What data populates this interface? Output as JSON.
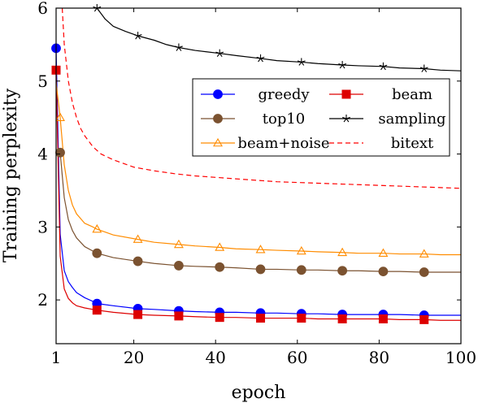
{
  "chart_data": {
    "type": "line",
    "xlabel": "epoch",
    "ylabel": "Training perplexity",
    "xlim": [
      1,
      100
    ],
    "ylim": [
      1.4,
      6
    ],
    "xticks": [
      1,
      20,
      40,
      60,
      80,
      100
    ],
    "yticks": [
      2,
      3,
      4,
      5,
      6
    ],
    "grid": false,
    "legend_position": "top-right",
    "series": [
      {
        "name": "greedy",
        "color": "#0000ff",
        "marker": "circle",
        "dashed": false,
        "x": [
          1,
          2,
          3,
          4,
          5,
          6,
          8,
          10,
          11,
          15,
          21,
          25,
          31,
          35,
          41,
          45,
          51,
          55,
          61,
          65,
          71,
          75,
          81,
          85,
          91,
          95,
          100
        ],
        "y": [
          5.45,
          2.9,
          2.4,
          2.25,
          2.17,
          2.1,
          2.03,
          1.98,
          1.95,
          1.92,
          1.88,
          1.87,
          1.85,
          1.84,
          1.83,
          1.83,
          1.82,
          1.82,
          1.81,
          1.81,
          1.8,
          1.8,
          1.8,
          1.8,
          1.79,
          1.79,
          1.79
        ],
        "marker_x": [
          1,
          11,
          21,
          31,
          41,
          51,
          61,
          71,
          81,
          91
        ]
      },
      {
        "name": "beam",
        "color": "#dd0000",
        "marker": "square",
        "dashed": false,
        "x": [
          1,
          2,
          3,
          4,
          5,
          6,
          8,
          10,
          11,
          15,
          21,
          25,
          31,
          35,
          41,
          45,
          51,
          55,
          61,
          65,
          71,
          75,
          81,
          85,
          91,
          95,
          100
        ],
        "y": [
          5.15,
          2.6,
          2.15,
          2.02,
          1.96,
          1.92,
          1.89,
          1.87,
          1.86,
          1.83,
          1.8,
          1.79,
          1.78,
          1.77,
          1.76,
          1.76,
          1.75,
          1.75,
          1.75,
          1.74,
          1.74,
          1.74,
          1.74,
          1.73,
          1.73,
          1.72,
          1.72
        ],
        "marker_x": [
          1,
          11,
          21,
          31,
          41,
          51,
          61,
          71,
          81,
          91
        ]
      },
      {
        "name": "top10",
        "color": "#7b5230",
        "marker": "circle",
        "dashed": false,
        "x": [
          2,
          3,
          4,
          5,
          6,
          8,
          10,
          11,
          15,
          21,
          25,
          31,
          35,
          41,
          45,
          51,
          55,
          61,
          65,
          71,
          75,
          81,
          85,
          91,
          95,
          100
        ],
        "y": [
          4.02,
          3.4,
          3.1,
          2.95,
          2.85,
          2.73,
          2.67,
          2.64,
          2.58,
          2.53,
          2.5,
          2.47,
          2.46,
          2.45,
          2.44,
          2.42,
          2.42,
          2.41,
          2.41,
          2.4,
          2.4,
          2.39,
          2.39,
          2.38,
          2.38,
          2.38
        ],
        "marker_x": [
          2,
          11,
          21,
          31,
          41,
          51,
          61,
          71,
          81,
          91
        ]
      },
      {
        "name": "sampling",
        "color": "#000000",
        "marker": "star",
        "dashed": false,
        "x": [
          11,
          13,
          15,
          18,
          21,
          25,
          28,
          31,
          35,
          41,
          45,
          51,
          55,
          61,
          65,
          71,
          75,
          81,
          85,
          91,
          95,
          100
        ],
        "y": [
          6.0,
          5.85,
          5.75,
          5.68,
          5.62,
          5.56,
          5.5,
          5.46,
          5.42,
          5.38,
          5.35,
          5.31,
          5.28,
          5.26,
          5.24,
          5.22,
          5.21,
          5.2,
          5.18,
          5.17,
          5.15,
          5.14
        ],
        "marker_x": [
          11,
          21,
          31,
          41,
          51,
          61,
          71,
          81,
          91
        ]
      },
      {
        "name": "beam+noise",
        "color": "#ff8c00",
        "marker": "triangle",
        "dashed": false,
        "x": [
          1,
          2,
          3,
          4,
          5,
          6,
          8,
          10,
          11,
          15,
          21,
          25,
          31,
          35,
          41,
          45,
          51,
          55,
          61,
          65,
          71,
          75,
          81,
          85,
          91,
          95,
          100
        ],
        "y": [
          4.98,
          4.5,
          3.85,
          3.5,
          3.3,
          3.18,
          3.05,
          3.0,
          2.97,
          2.89,
          2.83,
          2.79,
          2.76,
          2.74,
          2.72,
          2.7,
          2.69,
          2.68,
          2.67,
          2.66,
          2.65,
          2.64,
          2.64,
          2.63,
          2.63,
          2.62,
          2.62
        ],
        "marker_x": [
          2,
          11,
          21,
          31,
          41,
          51,
          61,
          71,
          81,
          91
        ]
      },
      {
        "name": "bitext",
        "color": "#ff0000",
        "marker": "none",
        "dashed": true,
        "x": [
          2.5,
          3,
          4,
          5,
          6,
          7,
          8,
          10,
          12,
          15,
          20,
          25,
          30,
          35,
          40,
          45,
          50,
          55,
          60,
          65,
          70,
          75,
          80,
          85,
          90,
          95,
          100
        ],
        "y": [
          6.0,
          5.5,
          5.0,
          4.7,
          4.5,
          4.35,
          4.25,
          4.1,
          4.0,
          3.92,
          3.82,
          3.77,
          3.73,
          3.7,
          3.68,
          3.66,
          3.64,
          3.62,
          3.61,
          3.6,
          3.59,
          3.58,
          3.57,
          3.56,
          3.55,
          3.54,
          3.53
        ]
      }
    ],
    "legend_order": [
      "greedy",
      "beam",
      "top10",
      "sampling",
      "beam+noise",
      "bitext"
    ]
  }
}
